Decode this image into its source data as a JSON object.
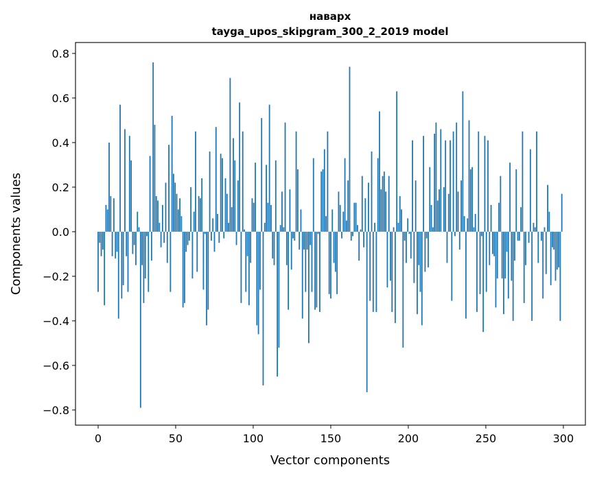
{
  "chart_data": {
    "type": "bar",
    "title": "наварх",
    "subtitle": "tayga_upos_skipgram_300_2_2019 model",
    "xlabel": "Vector components",
    "ylabel": "Components values",
    "xlim": [
      -14.6,
      314.2
    ],
    "ylim": [
      -0.868,
      0.849
    ],
    "xticks": [
      0,
      50,
      100,
      150,
      200,
      250,
      300
    ],
    "xtick_labels": [
      "0",
      "50",
      "100",
      "150",
      "200",
      "250",
      "300"
    ],
    "yticks": [
      -0.8,
      -0.6,
      -0.4,
      -0.2,
      0.0,
      0.2,
      0.4,
      0.6,
      0.8
    ],
    "ytick_labels": [
      "−0.8",
      "−0.6",
      "−0.4",
      "−0.2",
      "0.0",
      "0.2",
      "0.4",
      "0.6",
      "0.8"
    ],
    "grid": false,
    "bar_color": "#1f77b4",
    "values": [
      -0.27,
      -0.05,
      -0.11,
      -0.08,
      -0.33,
      0.12,
      0.1,
      0.4,
      0.16,
      -0.11,
      0.15,
      -0.12,
      -0.09,
      -0.39,
      0.57,
      -0.3,
      -0.24,
      0.46,
      -0.11,
      -0.27,
      0.43,
      0.32,
      -0.1,
      -0.06,
      -0.15,
      0.09,
      0.02,
      -0.79,
      -0.15,
      -0.32,
      -0.21,
      -0.02,
      -0.27,
      0.34,
      -0.13,
      0.76,
      0.48,
      0.16,
      0.14,
      0.04,
      -0.07,
      0.12,
      -0.05,
      0.22,
      -0.14,
      0.39,
      -0.27,
      0.52,
      0.26,
      0.22,
      0.17,
      0.1,
      0.15,
      0.07,
      -0.34,
      -0.32,
      -0.09,
      -0.06,
      -0.04,
      0.2,
      -0.21,
      0.09,
      0.45,
      -0.18,
      0.16,
      0.15,
      0.24,
      -0.26,
      -0.01,
      -0.42,
      -0.35,
      0.36,
      -0.04,
      0.06,
      -0.09,
      0.47,
      0.08,
      -0.05,
      0.35,
      0.33,
      -0.03,
      0.24,
      0.17,
      0.04,
      0.69,
      0.11,
      0.42,
      0.32,
      -0.06,
      0.23,
      0.58,
      -0.32,
      0.45,
      0.01,
      -0.27,
      -0.11,
      -0.33,
      -0.14,
      0.15,
      0.13,
      0.31,
      -0.42,
      -0.46,
      -0.26,
      0.51,
      -0.69,
      0.04,
      0.3,
      0.13,
      0.57,
      0.12,
      -0.12,
      -0.15,
      0.32,
      -0.65,
      -0.52,
      0.03,
      0.18,
      0.02,
      0.49,
      -0.15,
      -0.35,
      0.19,
      -0.17,
      -0.03,
      -0.04,
      0.45,
      0.28,
      -0.08,
      0.1,
      -0.39,
      -0.08,
      -0.27,
      -0.08,
      -0.5,
      -0.06,
      -0.27,
      0.33,
      -0.35,
      -0.34,
      -0.01,
      -0.36,
      0.27,
      0.28,
      0.37,
      0.07,
      0.45,
      -0.28,
      -0.3,
      0.1,
      -0.14,
      -0.18,
      -0.28,
      0.18,
      0.12,
      -0.03,
      0.09,
      0.33,
      0.05,
      0.23,
      0.74,
      -0.04,
      -0.02,
      0.13,
      0.13,
      0.03,
      -0.13,
      0.01,
      0.25,
      -0.07,
      0.15,
      -0.72,
      0.22,
      -0.31,
      0.36,
      -0.36,
      0.04,
      -0.36,
      0.33,
      0.54,
      0.19,
      0.25,
      0.27,
      0.18,
      -0.25,
      0.25,
      -0.22,
      -0.36,
      0.02,
      -0.41,
      0.63,
      0.04,
      0.16,
      0.1,
      -0.52,
      -0.04,
      -0.14,
      0.06,
      -0.01,
      -0.12,
      0.41,
      -0.23,
      0.23,
      -0.37,
      -0.15,
      -0.27,
      -0.42,
      0.43,
      -0.18,
      -0.03,
      -0.16,
      0.29,
      0.12,
      0.02,
      0.44,
      0.49,
      0.14,
      0.19,
      0.46,
      0.0,
      0.2,
      0.41,
      -0.14,
      0.17,
      0.41,
      -0.31,
      0.45,
      -0.02,
      0.49,
      0.18,
      -0.08,
      0.23,
      0.63,
      0.07,
      -0.39,
      0.06,
      0.5,
      0.28,
      0.29,
      0.02,
      0.08,
      -0.36,
      0.45,
      -0.28,
      -0.02,
      -0.45,
      0.43,
      -0.27,
      0.41,
      -0.15,
      0.12,
      -0.1,
      -0.11,
      -0.34,
      -0.21,
      0.13,
      0.25,
      -0.21,
      -0.37,
      -0.21,
      -0.09,
      -0.3,
      0.31,
      -0.22,
      -0.4,
      -0.13,
      0.28,
      -0.04,
      -0.04,
      0.11,
      0.45,
      -0.32,
      -0.15,
      0.0,
      -0.05,
      0.37,
      -0.4,
      0.04,
      0.02,
      0.45,
      -0.14,
      0.0,
      -0.04,
      -0.3,
      0.02,
      -0.19,
      0.21,
      0.09,
      -0.24,
      -0.07,
      -0.08,
      -0.22,
      -0.17,
      -0.16,
      -0.4,
      0.17
    ]
  }
}
